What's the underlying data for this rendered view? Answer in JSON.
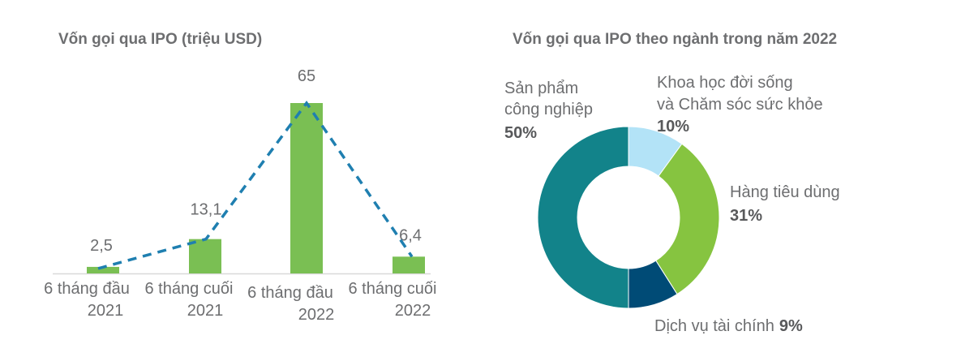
{
  "chart_data": [
    {
      "type": "bar",
      "title": "Vốn gọi qua IPO (triệu USD)",
      "categories": [
        [
          "6 tháng đầu",
          "2021"
        ],
        [
          "6 tháng cuối",
          "2021"
        ],
        [
          "6 tháng đầu",
          "2022"
        ],
        [
          "6 tháng cuối",
          "2022"
        ]
      ],
      "values": [
        2.5,
        13.1,
        65,
        6.4
      ],
      "data_labels": [
        "2,5",
        "13,1",
        "65",
        "6,4"
      ],
      "overlay_line": "dashed",
      "ylim": [
        0,
        65
      ],
      "grid": false,
      "colors": {
        "bar": "#7abf53",
        "line": "#1f7fb0"
      }
    },
    {
      "type": "pie",
      "donut": true,
      "title": "Vốn gọi qua IPO theo ngành trong năm 2022",
      "slices": [
        {
          "label": [
            "Khoa học đời sống",
            "và Chăm sóc sức khỏe"
          ],
          "value": 10,
          "pct_label": "10%",
          "color": "#b3e3f7"
        },
        {
          "label": [
            "Hàng tiêu dùng"
          ],
          "value": 31,
          "pct_label": "31%",
          "color": "#86c440"
        },
        {
          "label": [
            "Dịch vụ tài chính"
          ],
          "value": 9,
          "pct_label": "9%",
          "color": "#004b76"
        },
        {
          "label": [
            "Sản phẩm",
            "công nghiệp"
          ],
          "value": 50,
          "pct_label": "50%",
          "color": "#12838a"
        }
      ]
    }
  ]
}
